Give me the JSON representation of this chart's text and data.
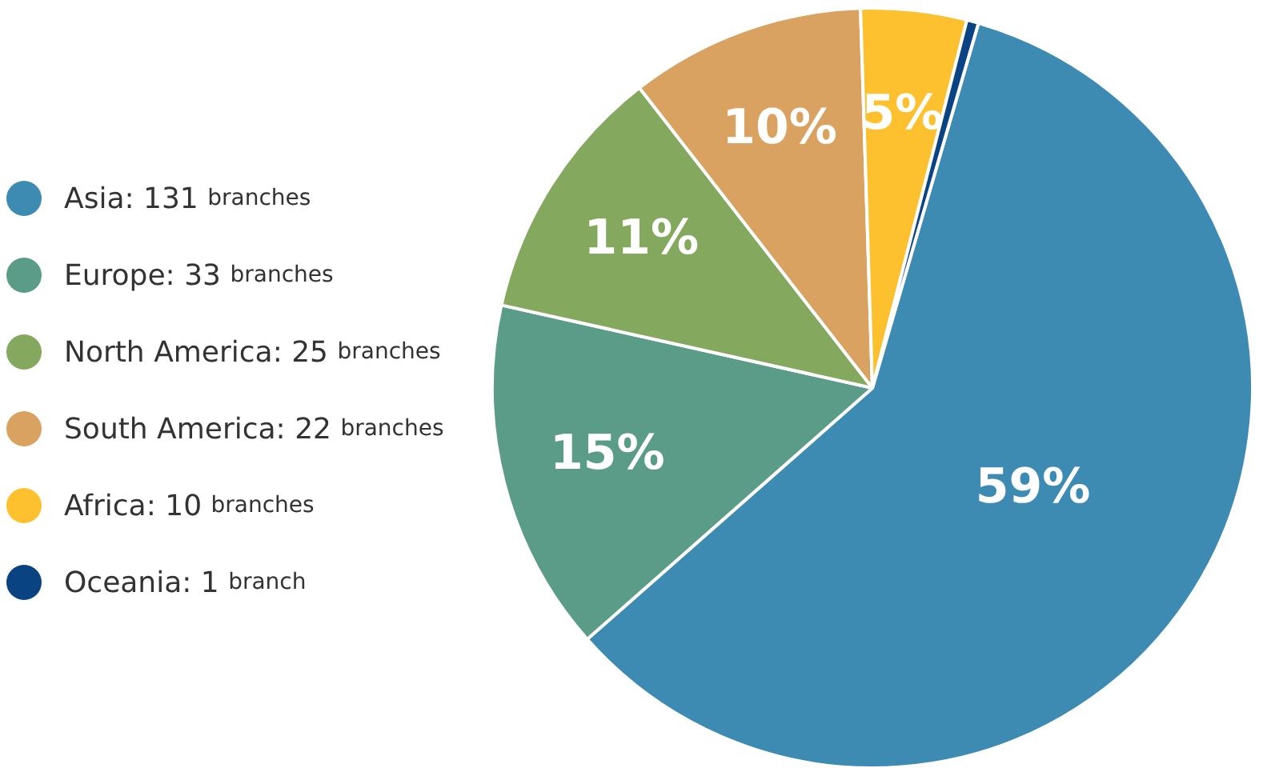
{
  "chart_data": {
    "type": "pie",
    "categories": [
      "Asia: 131 branches",
      "Europe: 33 branches",
      "North America: 25 branches",
      "South America: 22 branches",
      "Africa: 10 branches",
      "Oceania: 1 branch"
    ],
    "values": [
      59,
      15,
      11,
      10,
      4.5,
      0.5
    ],
    "colors": [
      "#3d8ab3",
      "#5a9c87",
      "#84a85e",
      "#d9a260",
      "#fdc12f",
      "#0a4382"
    ],
    "value_labels": [
      "59%",
      "15%",
      "11%",
      "10%",
      "5%",
      null
    ],
    "legend": "left"
  }
}
